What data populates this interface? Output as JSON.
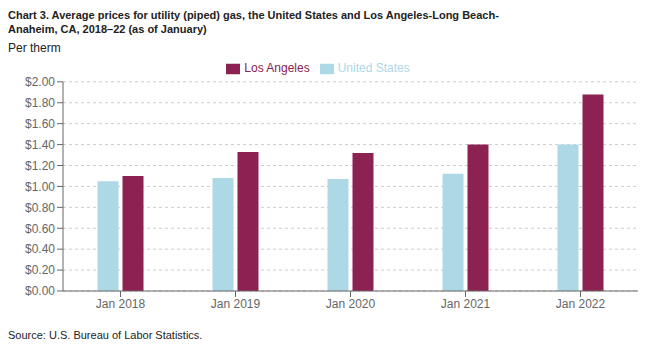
{
  "chart_data": {
    "type": "bar",
    "title": "Chart 3. Average prices for utility (piped) gas, the United States and Los Angeles-Long Beach-\nAnaheim, CA, 2018–22 (as of January)",
    "ylabel": "Per therm",
    "source": "Source: U.S. Bureau of Labor Statistics.",
    "categories": [
      "Jan 2018",
      "Jan 2019",
      "Jan 2020",
      "Jan 2021",
      "Jan 2022"
    ],
    "series": [
      {
        "name": "United States",
        "color": "#add8e6",
        "values": [
          1.05,
          1.08,
          1.07,
          1.12,
          1.4
        ]
      },
      {
        "name": "Los Angeles",
        "color": "#8b2252",
        "values": [
          1.1,
          1.33,
          1.32,
          1.4,
          1.88
        ]
      }
    ],
    "ylim": [
      0.0,
      2.0
    ],
    "yticks": [
      {
        "value": 0.0,
        "label": "$0.00"
      },
      {
        "value": 0.2,
        "label": "$0.20"
      },
      {
        "value": 0.4,
        "label": "$0.40"
      },
      {
        "value": 0.6,
        "label": "$0.60"
      },
      {
        "value": 0.8,
        "label": "$0.80"
      },
      {
        "value": 1.0,
        "label": "$1.00"
      },
      {
        "value": 1.2,
        "label": "$1.20"
      },
      {
        "value": 1.4,
        "label": "$1.40"
      },
      {
        "value": 1.6,
        "label": "$1.60"
      },
      {
        "value": 1.8,
        "label": "$1.80"
      },
      {
        "value": 2.0,
        "label": "$2.00"
      }
    ],
    "grid": true,
    "legend": "top"
  }
}
